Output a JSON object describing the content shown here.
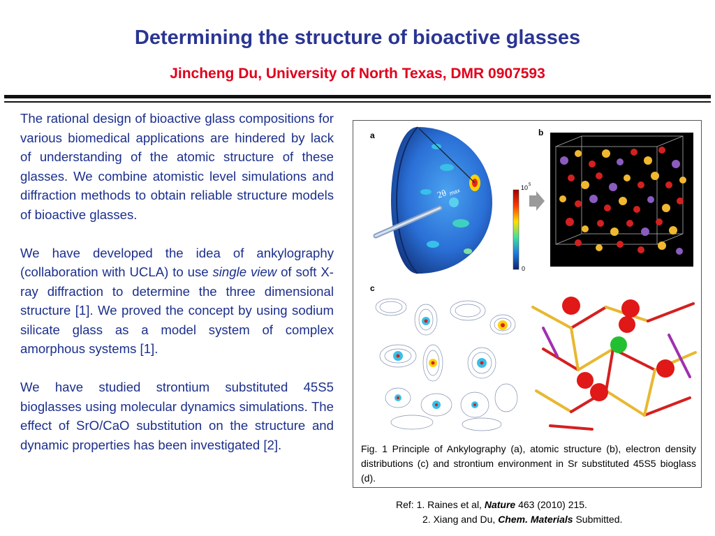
{
  "header": {
    "title": "Determining the structure of bioactive glasses",
    "subtitle": "Jincheng Du, University of North Texas, DMR 0907593"
  },
  "body": {
    "p1": "The rational design of bioactive glass compositions for various biomedical applications are hindered by lack of understanding of the atomic structure of these glasses. We combine atomistic level simulations and diffraction methods to obtain reliable structure models of bioactive glasses.",
    "p2_before": "We have developed the idea of ankylography (collaboration with UCLA) to use ",
    "p2_italic": "single view",
    "p2_after": " of soft X-ray diffraction to determine the three dimensional structure [1]. We proved the concept by using sodium silicate glass as a model system of complex amorphous systems [1].",
    "p3": "We have studied strontium substituted 45S5 bioglasses using molecular dynamics simulations. The effect of SrO/CaO substitution on the structure and dynamic properties has been investigated [2]."
  },
  "figure": {
    "label_a": "a",
    "label_b": "b",
    "label_c": "c",
    "angle_label": "2θ",
    "angle_sub": "max",
    "colorbar_top": "10",
    "colorbar_exp": "5",
    "colorbar_bottom": "0",
    "caption": "Fig. 1 Principle of Ankylography (a), atomic structure (b), electron density distributions (c) and strontium environment in Sr substituted 45S5 bioglass (d)."
  },
  "refs": {
    "r1_pre": "Ref: 1. Raines et al, ",
    "r1_journal": "Nature",
    "r1_post": " 463 (2010) 215.",
    "r2_pre": "2. Xiang and Du, ",
    "r2_journal": "Chem. Materials",
    "r2_post": " Submitted."
  }
}
